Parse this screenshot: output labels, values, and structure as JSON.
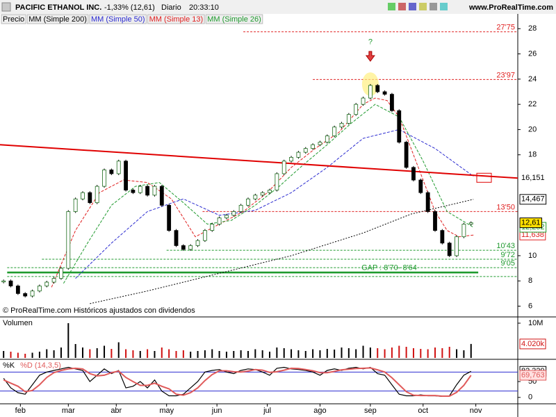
{
  "header": {
    "title": "PACIFIC ETHANOL INC.",
    "change": "-1,33% (12,61)",
    "period": "Diario",
    "time": "20:33:10",
    "site": "www.ProRealTime.com"
  },
  "chart_data": [
    {
      "type": "candlestick",
      "legend_label": "Precio",
      "x": [
        0,
        3,
        6,
        9,
        12,
        15,
        18,
        21,
        24,
        27,
        30,
        33,
        36,
        39,
        42,
        45,
        48,
        51,
        54,
        57,
        60,
        63,
        66,
        69,
        72,
        75,
        78,
        81,
        84,
        87,
        90,
        93,
        96,
        99,
        102,
        105,
        108,
        111,
        114,
        117,
        120,
        123,
        126,
        129,
        132,
        135,
        138,
        141,
        144,
        147,
        150,
        153,
        156,
        159,
        162,
        165,
        168,
        171,
        174,
        177,
        180,
        183,
        186,
        189,
        192,
        195
      ],
      "close": [
        8.0,
        7.6,
        7.0,
        6.8,
        7.2,
        7.6,
        7.9,
        8.2,
        9.0,
        13.5,
        14.5,
        15.0,
        14.2,
        15.5,
        16.8,
        16.5,
        17.5,
        15.2,
        15.0,
        15.5,
        14.8,
        15.5,
        14.0,
        12.0,
        10.8,
        10.5,
        10.8,
        11.2,
        12.0,
        12.5,
        13.0,
        13.2,
        13.5,
        14.0,
        14.5,
        14.8,
        15.0,
        15.2,
        16.5,
        17.5,
        17.8,
        18.2,
        18.5,
        18.8,
        19.0,
        19.5,
        20.2,
        20.5,
        21.2,
        22.0,
        22.5,
        23.5,
        23.0,
        22.8,
        21.5,
        19.0,
        17.0,
        16.0,
        15.0,
        13.5,
        12.0,
        11.0,
        10.0,
        11.5,
        12.5,
        12.61
      ],
      "close_label": "12,61",
      "xlim": [
        -1.5,
        214.5
      ],
      "ylim": [
        5.2,
        28.4
      ],
      "yticks": [
        6,
        8,
        10,
        18,
        20,
        22,
        24,
        26,
        28
      ],
      "overlays": [
        {
          "name": "MM (Simple 200)",
          "color": "#000000",
          "x": [
            36,
            60,
            90,
            120,
            150,
            170,
            196
          ],
          "values": [
            6.2,
            7.2,
            8.6,
            10.0,
            11.8,
            13.3,
            14.467
          ],
          "last_label": "14,467"
        },
        {
          "name": "MM (Simple 50)",
          "color": "#2b2bd0",
          "x": [
            30,
            45,
            60,
            75,
            90,
            105,
            120,
            135,
            150,
            165,
            180,
            196
          ],
          "values": [
            8.2,
            11.0,
            13.5,
            14.5,
            13.2,
            13.6,
            15.0,
            17.0,
            19.3,
            20.0,
            18.5,
            16.3
          ]
        },
        {
          "name": "MM (Simple 13)",
          "color": "#e02020",
          "x": [
            20,
            30,
            40,
            50,
            60,
            70,
            80,
            90,
            100,
            110,
            120,
            130,
            140,
            150,
            155,
            160,
            165,
            170,
            175,
            180,
            185,
            190,
            196
          ],
          "values": [
            7.5,
            12.0,
            15.0,
            16.0,
            15.8,
            14.5,
            11.5,
            12.5,
            13.5,
            15.0,
            17.0,
            18.5,
            19.8,
            22.0,
            22.5,
            22.3,
            21.0,
            18.5,
            16.0,
            13.5,
            12.0,
            11.5,
            11.638
          ],
          "last_label": "11,638"
        },
        {
          "name": "MM (Simple 26)",
          "color": "#1f9a2e",
          "x": [
            25,
            35,
            45,
            55,
            65,
            75,
            85,
            95,
            105,
            115,
            125,
            135,
            145,
            155,
            165,
            175,
            185,
            196
          ],
          "values": [
            7.8,
            11.0,
            14.0,
            15.5,
            15.8,
            14.2,
            12.5,
            12.8,
            14.0,
            15.5,
            17.2,
            18.8,
            20.5,
            22.0,
            21.0,
            17.5,
            13.5,
            12.252
          ],
          "last_label": "12,252"
        }
      ],
      "trendline": {
        "color": "#e00000",
        "x": [
          -1.5,
          214.5
        ],
        "values": [
          18.8,
          16.151
        ],
        "label": "16,151"
      },
      "levels": [
        {
          "value": 27.75,
          "label": "27'75",
          "start": 100,
          "color": "#e02020"
        },
        {
          "value": 23.97,
          "label": "23'97",
          "start": 129,
          "color": "#e02020"
        },
        {
          "value": 13.5,
          "label": "13'50",
          "start": 83,
          "color": "#e02020"
        },
        {
          "value": 10.43,
          "label": "10'43",
          "start": 68,
          "color": "#1f9a2e"
        },
        {
          "value": 9.72,
          "label": "9'72",
          "start": 16,
          "color": "#1f9a2e"
        },
        {
          "value": 9.05,
          "label": "9'05",
          "start": 1.5,
          "color": "#1f9a2e"
        },
        {
          "value": 8.35,
          "start": 1.5,
          "color": "#1f9a2e"
        }
      ],
      "gap": {
        "text": "GAP : 8'70- 8'64",
        "values": [
          8.7,
          8.64
        ],
        "x": [
          1.5,
          198
        ],
        "color": "#1f9a2e"
      },
      "annotation": {
        "text": "?",
        "x": 153,
        "value": 26.5
      },
      "watermark": "© ProRealTime.com Históricos ajustados con dividendos"
    },
    {
      "type": "bar",
      "title": "Volumen",
      "x": [
        0,
        3,
        6,
        9,
        12,
        15,
        18,
        21,
        24,
        27,
        30,
        33,
        36,
        39,
        42,
        45,
        48,
        51,
        54,
        57,
        60,
        63,
        66,
        69,
        72,
        75,
        78,
        81,
        84,
        87,
        90,
        93,
        96,
        99,
        102,
        105,
        108,
        111,
        114,
        117,
        120,
        123,
        126,
        129,
        132,
        135,
        138,
        141,
        144,
        147,
        150,
        153,
        156,
        159,
        162,
        165,
        168,
        171,
        174,
        177,
        180,
        183,
        186,
        189,
        192,
        195
      ],
      "values": [
        2000,
        1800,
        1500,
        1200,
        1500,
        1800,
        2500,
        2200,
        3000,
        10000,
        4000,
        3000,
        2500,
        2800,
        3500,
        2600,
        4500,
        2500,
        2200,
        2000,
        2500,
        2000,
        3000,
        2500,
        2000,
        2200,
        1800,
        2000,
        2200,
        2500,
        2000,
        1800,
        2000,
        2200,
        2000,
        2500,
        2200,
        1800,
        3000,
        2800,
        2500,
        2200,
        2000,
        2500,
        2200,
        2600,
        2400,
        3000,
        2800,
        2500,
        3500,
        3000,
        2800,
        2500,
        3000,
        3500,
        3200,
        2800,
        2600,
        2500,
        3000,
        2800,
        3200,
        2500,
        2200,
        4020
      ],
      "last_label": "4.020k",
      "xlim": [
        -1.5,
        214.5
      ],
      "ylim": [
        0,
        11600
      ],
      "yticks": [
        {
          "value": 10000,
          "label": "10M"
        }
      ]
    },
    {
      "type": "line",
      "x": [
        0,
        3,
        6,
        9,
        12,
        15,
        18,
        21,
        24,
        27,
        30,
        33,
        36,
        39,
        42,
        45,
        48,
        51,
        54,
        57,
        60,
        63,
        66,
        69,
        72,
        75,
        78,
        81,
        84,
        87,
        90,
        93,
        96,
        99,
        102,
        105,
        108,
        111,
        114,
        117,
        120,
        123,
        126,
        129,
        132,
        135,
        138,
        141,
        144,
        147,
        150,
        153,
        156,
        159,
        162,
        165,
        168,
        171,
        174,
        177,
        180,
        183,
        186,
        189,
        192,
        195
      ],
      "series": [
        {
          "name": "%K",
          "color": "#000000",
          "values": [
            60,
            30,
            15,
            10,
            40,
            70,
            80,
            85,
            90,
            95,
            90,
            85,
            50,
            70,
            90,
            75,
            85,
            30,
            35,
            50,
            30,
            55,
            20,
            5,
            5,
            10,
            30,
            50,
            80,
            85,
            88,
            80,
            75,
            85,
            90,
            88,
            80,
            70,
            92,
            95,
            90,
            88,
            85,
            80,
            70,
            85,
            90,
            85,
            92,
            95,
            90,
            95,
            75,
            70,
            40,
            10,
            5,
            5,
            8,
            5,
            5,
            3,
            5,
            40,
            70,
            82.329
          ],
          "last_label": "82,329"
        },
        {
          "name": "%D (14,3,5)",
          "color": "#e05a5a",
          "values": [
            55,
            45,
            35,
            18,
            22,
            40,
            63,
            78,
            85,
            90,
            92,
            90,
            75,
            68,
            70,
            78,
            83,
            63,
            50,
            38,
            38,
            45,
            35,
            27,
            10,
            7,
            15,
            30,
            53,
            72,
            84,
            84,
            81,
            80,
            83,
            88,
            86,
            79,
            81,
            86,
            92,
            91,
            88,
            84,
            78,
            78,
            82,
            87,
            89,
            91,
            92,
            93,
            87,
            80,
            62,
            40,
            18,
            7,
            6,
            6,
            6,
            4,
            4,
            16,
            38,
            69.763
          ],
          "last_label": "69,763"
        }
      ],
      "levels": [
        20,
        80
      ],
      "xlim": [
        -1.5,
        214.5
      ],
      "ylim": [
        -18,
        118
      ],
      "yticks": [
        0,
        50
      ],
      "xticks": [
        {
          "value": 7,
          "label": "feb"
        },
        {
          "value": 27,
          "label": "mar"
        },
        {
          "value": 47,
          "label": "abr"
        },
        {
          "value": 68,
          "label": "may"
        },
        {
          "value": 89,
          "label": "jun"
        },
        {
          "value": 110,
          "label": "jul"
        },
        {
          "value": 132,
          "label": "ago"
        },
        {
          "value": 153,
          "label": "sep"
        },
        {
          "value": 175,
          "label": "oct"
        },
        {
          "value": 197,
          "label": "nov"
        }
      ]
    }
  ]
}
